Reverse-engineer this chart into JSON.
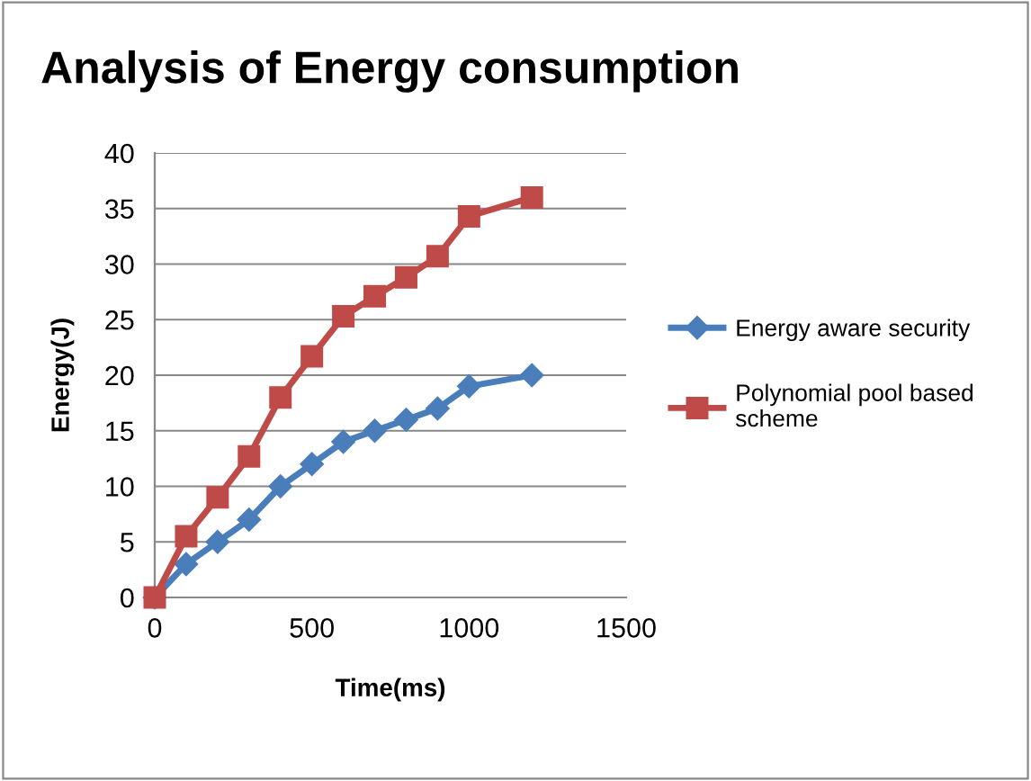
{
  "chart_data": {
    "type": "line",
    "title": "Analysis of Energy consumption",
    "xlabel": "Time(ms)",
    "ylabel": "Energy(J)",
    "x": [
      0,
      100,
      200,
      300,
      400,
      500,
      600,
      700,
      800,
      900,
      1000,
      1200
    ],
    "series": [
      {
        "name": "Energy aware security",
        "color": "#4a7ebb",
        "marker": "diamond",
        "values": [
          0,
          3,
          5,
          7,
          10,
          12,
          14,
          15,
          16,
          17,
          19,
          20
        ]
      },
      {
        "name": "Polynomial pool based scheme",
        "color": "#be4b48",
        "marker": "square",
        "values": [
          0,
          5.5,
          9,
          12.7,
          18,
          21.7,
          25.3,
          27.1,
          28.8,
          30.7,
          34.3,
          36
        ]
      }
    ],
    "xlim": [
      0,
      1500
    ],
    "xticks": [
      0,
      500,
      1000,
      1500
    ],
    "ylim": [
      0,
      40
    ],
    "yticks": [
      0,
      5,
      10,
      15,
      20,
      25,
      30,
      35,
      40
    ],
    "grid": "y",
    "legend": "right",
    "line_style": "solid"
  }
}
